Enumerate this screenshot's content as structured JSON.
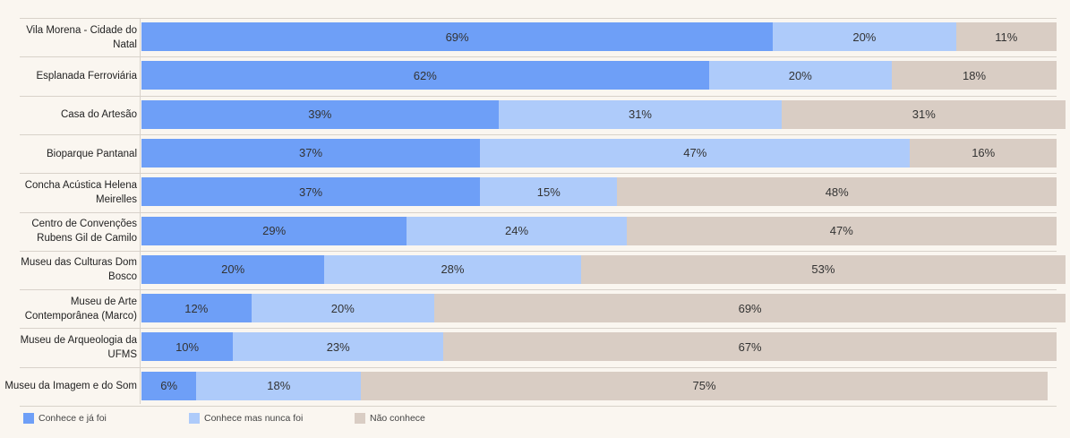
{
  "chart_data": {
    "type": "bar",
    "orientation": "horizontal",
    "stacked": true,
    "categories": [
      "Vila Morena - Cidade do Natal",
      "Esplanada Ferroviária",
      "Casa do Artesão",
      "Bioparque Pantanal",
      "Concha Acústica Helena Meirelles",
      "Centro de Convenções Rubens Gil de Camilo",
      "Museu das Culturas Dom Bosco",
      "Museu de Arte Contemporânea (Marco)",
      "Museu de Arqueologia da UFMS",
      "Museu da Imagem e do Som"
    ],
    "series": [
      {
        "name": "Conhece e já foi",
        "color": "#6e9ff7",
        "values": [
          69,
          62,
          39,
          37,
          37,
          29,
          20,
          12,
          10,
          6
        ]
      },
      {
        "name": "Conhece mas nunca foi",
        "color": "#aecbfa",
        "values": [
          20,
          20,
          31,
          47,
          15,
          24,
          28,
          20,
          23,
          18
        ]
      },
      {
        "name": "Não conhece",
        "color": "#d9cdc4",
        "values": [
          11,
          18,
          31,
          16,
          48,
          47,
          53,
          69,
          67,
          75
        ]
      }
    ],
    "value_suffix": "%",
    "legend_position": "bottom-left"
  }
}
